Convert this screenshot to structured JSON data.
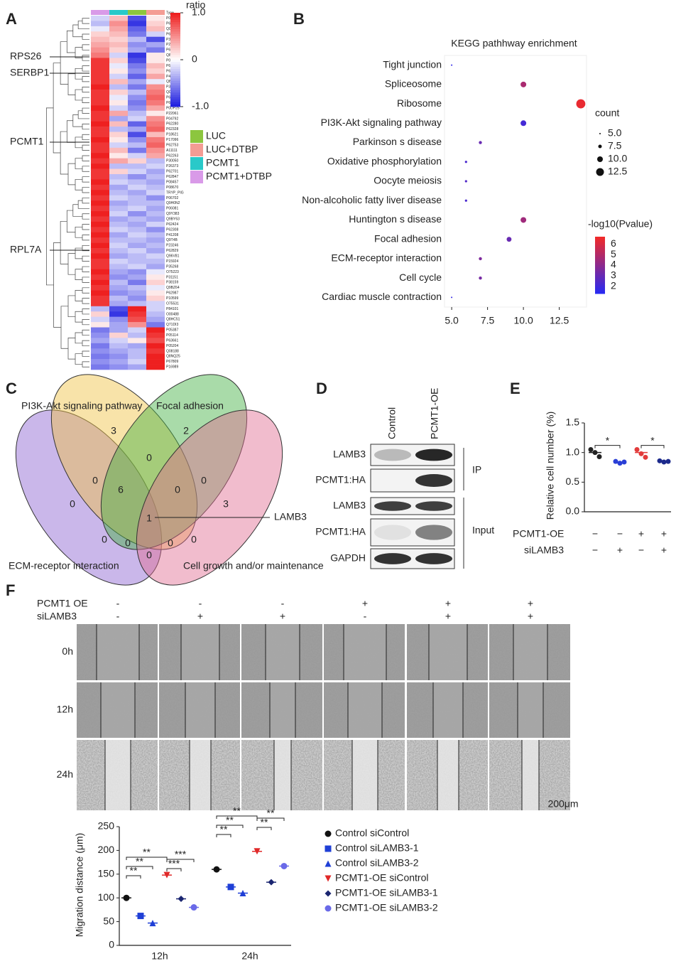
{
  "panels": [
    "A",
    "B",
    "C",
    "D",
    "E",
    "F"
  ],
  "chart_data": [
    {
      "type": "heatmap",
      "legend_title": "ratio",
      "color_ticks": [
        {
          "value": 1,
          "label": "1.0"
        },
        0,
        {
          "value": -1,
          "label": "-1.0"
        }
      ],
      "color_range": [
        -1,
        1
      ],
      "colors": [
        "#2020e0",
        "#ffffff",
        "#ee2020"
      ],
      "column_title": "Type",
      "column_colors": [
        "#d99ae8",
        "#29c9c9",
        "#8cc63f",
        "#f49c94"
      ],
      "legend": [
        {
          "name": "LUC",
          "color": "#8cc63f"
        },
        {
          "name": "LUC+DTBP",
          "color": "#f49c94"
        },
        {
          "name": "PCMT1",
          "color": "#29c9c9"
        },
        {
          "name": "PCMT1+DTBP",
          "color": "#d99ae8"
        }
      ],
      "genes": [
        "RPS26",
        "SERBP1",
        "PCMT1",
        "RPL7A"
      ],
      "rows": [
        "P05089",
        "P62805",
        "Q08554",
        "P62857",
        "P30050",
        "P26799",
        "P62854",
        "Q8BYZ3",
        "P04264",
        "P62081",
        "P62750",
        "P47756",
        "Q86C77",
        "P31944",
        "Q04837",
        "P62266",
        "P62851",
        "P0DP25",
        "P22061",
        "P04792",
        "P62280",
        "P62328",
        "P18621",
        "P17096",
        "P62753",
        "A11111",
        "P62263",
        "P30050",
        "P26373",
        "P62701",
        "P62847",
        "P08457",
        "P08670",
        "TRYP_PIG",
        "P06702",
        "Q9H0N2",
        "P06081",
        "Q9Y383",
        "Q9BY63",
        "P62424",
        "P62308",
        "P41208",
        "Q9T4B",
        "P23246",
        "P62829",
        "Q96V81",
        "P15924",
        "P35268",
        "O75223",
        "P31151",
        "P38159",
        "Q9BZ64",
        "P62987",
        "P10599",
        "O75531",
        "P84101",
        "O00488",
        "Q8HC51",
        "Q71DI3",
        "P05387",
        "P05114",
        "P63661",
        "P05204",
        "Q08188",
        "Q8NQ25",
        "P67809",
        "P16989"
      ],
      "values": [
        [
          -0.2,
          0.3,
          -0.8,
          0.1
        ],
        [
          -0.3,
          0.5,
          -0.9,
          0.2
        ],
        [
          -0.1,
          0.4,
          -0.7,
          0.3
        ],
        [
          0.2,
          0.3,
          -0.6,
          -0.2
        ],
        [
          0.3,
          0.2,
          -0.3,
          -0.8
        ],
        [
          0.4,
          0.3,
          -0.5,
          -0.4
        ],
        [
          0.5,
          0.2,
          -0.4,
          -0.6
        ],
        [
          0.6,
          -0.2,
          -0.9,
          0.1
        ],
        [
          0.9,
          0.2,
          -0.8,
          0.1
        ],
        [
          0.9,
          -0.1,
          -0.6,
          0.3
        ],
        [
          0.9,
          0.1,
          -0.5,
          0.2
        ],
        [
          0.9,
          -0.2,
          -0.7,
          0.4
        ],
        [
          0.9,
          0.3,
          -0.4,
          -0.1
        ],
        [
          1.0,
          -0.3,
          -0.6,
          0.5
        ],
        [
          0.9,
          0.2,
          -0.3,
          0.6
        ],
        [
          0.9,
          -0.1,
          -0.5,
          0.7
        ],
        [
          0.9,
          0.1,
          -0.6,
          0.6
        ],
        [
          1.0,
          -0.2,
          -0.5,
          0.4
        ],
        [
          0.9,
          0.4,
          -0.3,
          0.1
        ],
        [
          0.9,
          -0.4,
          -0.2,
          0.5
        ],
        [
          1.0,
          0.3,
          -0.7,
          0.6
        ],
        [
          0.9,
          -0.3,
          -0.4,
          0.7
        ],
        [
          0.9,
          0.2,
          -0.8,
          0.3
        ],
        [
          1.0,
          0.1,
          -0.5,
          0.6
        ],
        [
          0.9,
          -0.2,
          -0.3,
          0.7
        ],
        [
          0.9,
          0.3,
          -0.6,
          0.5
        ],
        [
          1.0,
          0.1,
          -0.2,
          0.4
        ],
        [
          0.9,
          0.4,
          0.2,
          -0.3
        ],
        [
          1.0,
          -0.3,
          -0.3,
          -0.2
        ],
        [
          0.9,
          0.2,
          -0.2,
          -0.4
        ],
        [
          0.9,
          -0.3,
          -0.5,
          -0.3
        ],
        [
          1.0,
          -0.2,
          -0.3,
          -0.4
        ],
        [
          0.9,
          -0.4,
          -0.2,
          -0.3
        ],
        [
          1.0,
          -0.3,
          -0.4,
          -0.2
        ],
        [
          0.9,
          -0.2,
          -0.3,
          -0.5
        ],
        [
          1.0,
          -0.4,
          -0.3,
          -0.3
        ],
        [
          0.9,
          -0.3,
          -0.2,
          -0.4
        ],
        [
          1.0,
          -0.2,
          -0.5,
          -0.3
        ],
        [
          0.9,
          -0.4,
          -0.3,
          -0.4
        ],
        [
          1.0,
          -0.3,
          -0.4,
          -0.2
        ],
        [
          0.9,
          -0.2,
          -0.3,
          -0.5
        ],
        [
          1.0,
          -0.4,
          -0.2,
          -0.3
        ],
        [
          0.9,
          -0.3,
          -0.3,
          -0.4
        ],
        [
          1.0,
          -0.2,
          -0.4,
          -0.3
        ],
        [
          0.9,
          -0.3,
          -0.2,
          -0.4
        ],
        [
          1.0,
          -0.4,
          -0.3,
          -0.2
        ],
        [
          0.9,
          -0.2,
          -0.3,
          -0.3
        ],
        [
          0.9,
          -0.3,
          -0.2,
          -0.4
        ],
        [
          1.0,
          -0.4,
          -0.5,
          -0.1
        ],
        [
          0.9,
          -0.5,
          -0.4,
          0.1
        ],
        [
          1.0,
          -0.3,
          -0.6,
          0.2
        ],
        [
          0.9,
          -0.4,
          -0.3,
          -0.1
        ],
        [
          1.0,
          -0.5,
          -0.4,
          0.1
        ],
        [
          0.9,
          -0.3,
          -0.5,
          0.2
        ],
        [
          0.9,
          -0.4,
          -0.3,
          -0.2
        ],
        [
          -0.3,
          -0.8,
          1.0,
          -0.2
        ],
        [
          0.2,
          -0.9,
          0.9,
          -0.3
        ],
        [
          -0.2,
          -0.5,
          0.8,
          -0.4
        ],
        [
          0.1,
          -0.4,
          0.5,
          -0.6
        ],
        [
          -0.6,
          -0.4,
          -0.2,
          1.0
        ],
        [
          -0.5,
          0.2,
          -0.3,
          0.9
        ],
        [
          -0.4,
          -0.2,
          0.1,
          0.8
        ],
        [
          -0.6,
          -0.3,
          -0.4,
          1.0
        ],
        [
          -0.5,
          -0.4,
          -0.3,
          0.9
        ],
        [
          -0.6,
          -0.5,
          -0.3,
          1.0
        ],
        [
          -0.5,
          -0.4,
          -0.2,
          1.0
        ],
        [
          -0.6,
          -0.5,
          -0.4,
          1.0
        ]
      ]
    },
    {
      "type": "dot",
      "title": "KEGG pathhway enrichment",
      "categories": [
        "Tight junction",
        "Spliceosome",
        "Ribosome",
        "PI3K-Akt signaling pathway",
        "Parkinson s disease",
        "Oxidative phosphorylation",
        "Oocyte meiosis",
        "Non-alcoholic fatty liver disease",
        "Huntington s disease",
        "Focal adhesion",
        "ECM-receptor interaction",
        "Cell cycle",
        "Cardiac muscle contraction"
      ],
      "values": [
        5,
        10,
        14,
        10,
        7,
        6,
        6,
        6,
        10,
        9,
        7,
        7,
        5
      ],
      "pvalues": [
        1.5,
        4.8,
        6.5,
        2.0,
        3.0,
        2.2,
        2.4,
        2.2,
        4.5,
        3.0,
        3.6,
        3.4,
        1.6
      ],
      "xlim": [
        4.5,
        14.4
      ],
      "xticks": [
        {
          "value": 5,
          "label": "5.0"
        },
        7.5,
        {
          "value": 10,
          "label": "10.0"
        },
        12.5
      ],
      "size_title": "count",
      "size_ticks": [
        {
          "value": 5,
          "label": "5.0"
        },
        7.5,
        {
          "value": 10,
          "label": "10.0"
        },
        12.5
      ],
      "color_title": "-log10(Pvalue)",
      "color_range": [
        1.3,
        6.7
      ],
      "color_ticks": [
        2,
        3,
        4,
        5,
        6
      ],
      "colors": [
        "#2a2af0",
        "#f02a2a"
      ]
    },
    {
      "type": "dot",
      "ylabel": "Relative cell number (%)",
      "ylim": [
        0,
        1.5
      ],
      "yticks": [
        {
          "value": 0,
          "label": "0.0"
        },
        0.5,
        {
          "value": 1,
          "label": "1.0"
        },
        1.5
      ],
      "conditions": [
        {
          "name": "PCMT1-OE",
          "signs": [
            "−",
            "−",
            "+",
            "+"
          ]
        },
        {
          "name": "siLAMB3",
          "signs": [
            "−",
            "+",
            "−",
            "+"
          ]
        }
      ],
      "values": [
        1.0,
        0.83,
        1.0,
        0.85
      ],
      "points": [
        [
          1.05,
          1.0,
          0.93
        ],
        [
          0.85,
          0.82,
          0.84
        ],
        [
          1.05,
          0.98,
          0.92
        ],
        [
          0.86,
          0.84,
          0.85
        ]
      ],
      "colors": [
        "#222222",
        "#2a3fd6",
        "#e23b3b",
        "#1c2a8c"
      ],
      "annotations": [
        "*",
        "*"
      ]
    },
    {
      "type": "dot",
      "ylabel": "Migration distance (μm)",
      "categories": [
        "12h",
        "24h"
      ],
      "ylim": [
        0,
        250
      ],
      "yticks": [
        0,
        50,
        100,
        150,
        200,
        250
      ],
      "series": [
        {
          "name": "Control siControl",
          "color": "#111111",
          "marker": "circle",
          "values": [
            100,
            160
          ]
        },
        {
          "name": "Control siLAMB3-1",
          "color": "#1f3fd6",
          "marker": "square",
          "values": [
            62,
            123
          ]
        },
        {
          "name": "Control siLAMB3-2",
          "color": "#1f3fd6",
          "marker": "triangle",
          "values": [
            47,
            110
          ]
        },
        {
          "name": "PCMT1-OE siControl",
          "color": "#e02828",
          "marker": "triangle-down",
          "values": [
            148,
            198
          ]
        },
        {
          "name": "PCMT1-OE siLAMB3-1",
          "color": "#1a2570",
          "marker": "diamond",
          "values": [
            98,
            133
          ]
        },
        {
          "name": "PCMT1-OE siLAMB3-2",
          "color": "#6a6ae8",
          "marker": "circle",
          "values": [
            80,
            167
          ]
        }
      ],
      "annotations": [
        "**",
        "**",
        "**",
        "***",
        "***",
        "**",
        "**",
        "**",
        "**",
        "**"
      ]
    }
  ],
  "venn": {
    "sets": [
      {
        "name": "PI3K-Akt signaling pathway",
        "color": "#f0c040"
      },
      {
        "name": "Focal adhesion",
        "color": "#40b040"
      },
      {
        "name": "ECM-receptor interaction",
        "color": "#8a60d0"
      },
      {
        "name": "Cell growth and/or maintenance",
        "color": "#e06a90"
      }
    ],
    "counts": [
      3,
      2,
      0,
      0,
      0,
      6,
      0,
      0,
      3,
      1,
      0,
      0,
      0,
      0,
      0
    ],
    "annotation": "LAMB3"
  },
  "blot": {
    "lanes": [
      "Control",
      "PCMT1-OE"
    ],
    "rows": [
      "LAMB3",
      "PCMT1:HA",
      "LAMB3",
      "PCMT1:HA",
      "GAPDH"
    ],
    "groups": [
      "IP",
      "Input"
    ]
  },
  "wound": {
    "conditions": [
      {
        "name": "PCMT1 OE",
        "signs": [
          "-",
          "-",
          "-",
          "+",
          "+",
          "+"
        ]
      },
      {
        "name": "siLAMB3",
        "signs": [
          "-",
          "+",
          "+",
          "-",
          "+",
          "+"
        ]
      }
    ],
    "times": [
      "0h",
      "12h",
      "24h"
    ],
    "scale_bar": "200μm"
  }
}
